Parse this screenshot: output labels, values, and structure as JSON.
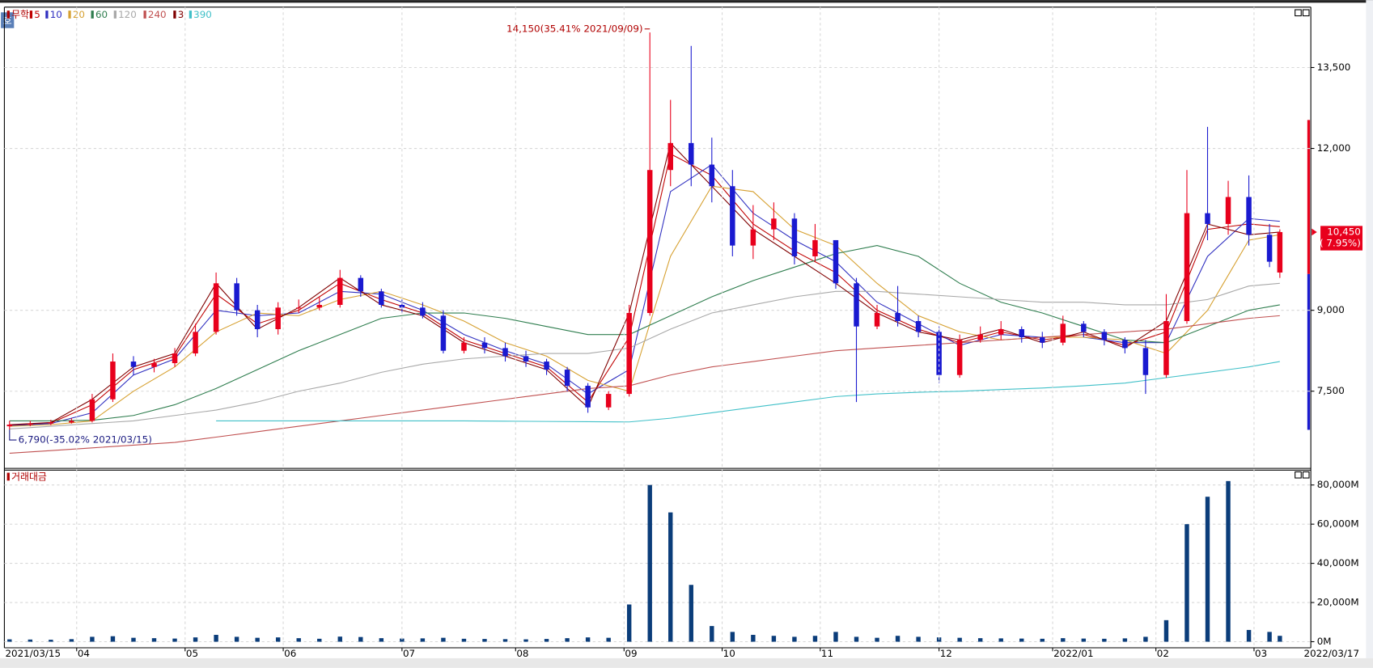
{
  "ui": {
    "button": "호"
  },
  "chart_data": [
    {
      "type": "candlestick",
      "title": "무학",
      "up_color": "#e8001c",
      "down_color": "#1a1ad0",
      "xlim": [
        -1,
        252
      ],
      "ylim": [
        6070,
        14620
      ],
      "yticks": [
        {
          "value": 7500,
          "label": "7,500"
        },
        {
          "value": 9000,
          "label": "9,000"
        },
        {
          "value": 12000,
          "label": "12,000"
        },
        {
          "value": 13500,
          "label": "13,500"
        }
      ],
      "grid": true,
      "x": [
        0,
        4,
        8,
        12,
        16,
        20,
        24,
        28,
        32,
        36,
        40,
        44,
        48,
        52,
        56,
        60,
        64,
        68,
        72,
        76,
        80,
        84,
        88,
        92,
        96,
        100,
        104,
        108,
        112,
        116,
        120,
        124,
        128,
        132,
        136,
        140,
        144,
        148,
        152,
        156,
        160,
        164,
        168,
        172,
        176,
        180,
        184,
        188,
        192,
        196,
        200,
        204,
        208,
        212,
        216,
        220,
        224,
        228,
        232,
        236,
        240,
        244,
        246
      ],
      "open": [
        6850,
        6880,
        6900,
        6920,
        6950,
        7350,
        8050,
        7950,
        8020,
        8200,
        8600,
        9500,
        9000,
        8650,
        9050,
        9050,
        9100,
        9600,
        9350,
        9100,
        9050,
        8900,
        8250,
        8400,
        8300,
        8150,
        8050,
        7900,
        7600,
        7200,
        7450,
        8950,
        11600,
        12100,
        11700,
        11300,
        10200,
        10500,
        10700,
        10000,
        10300,
        9500,
        8700,
        8950,
        8800,
        8600,
        7800,
        8450,
        8550,
        8650,
        8500,
        8400,
        8750,
        8600,
        8450,
        8300,
        7800,
        8800,
        10800,
        10600,
        11100,
        10400,
        9700
      ],
      "high": [
        6950,
        6950,
        6970,
        7000,
        7450,
        8200,
        8150,
        8100,
        8300,
        8750,
        9700,
        9600,
        9100,
        9150,
        9200,
        9250,
        9750,
        9650,
        9400,
        9200,
        9150,
        9000,
        8500,
        8500,
        8400,
        8250,
        8100,
        7950,
        7650,
        7500,
        9100,
        14150,
        12900,
        13900,
        12200,
        11600,
        10950,
        11000,
        10800,
        10600,
        10300,
        9600,
        9100,
        9450,
        8900,
        8700,
        8550,
        8700,
        8800,
        8700,
        8600,
        8900,
        8800,
        8650,
        8500,
        8450,
        9300,
        11600,
        12400,
        11400,
        11500,
        10600,
        10500
      ],
      "low": [
        6790,
        6850,
        6870,
        6900,
        6920,
        7300,
        7800,
        7850,
        7950,
        8150,
        8550,
        8900,
        8500,
        8550,
        8950,
        9000,
        9050,
        9250,
        9050,
        8950,
        8850,
        8200,
        8200,
        8200,
        8050,
        7950,
        7800,
        7500,
        7100,
        7150,
        7400,
        8900,
        11300,
        11300,
        11000,
        10000,
        9950,
        10300,
        9850,
        9900,
        9400,
        7300,
        8650,
        8700,
        8500,
        7650,
        7750,
        8400,
        8450,
        8400,
        8300,
        8350,
        8500,
        8350,
        8200,
        7450,
        7750,
        8750,
        10300,
        10400,
        10200,
        9800,
        9600
      ],
      "close": [
        6880,
        6900,
        6920,
        6950,
        7350,
        8050,
        7950,
        8020,
        8200,
        8600,
        9500,
        9000,
        8650,
        9050,
        9050,
        9100,
        9600,
        9350,
        9100,
        9050,
        8900,
        8250,
        8400,
        8300,
        8150,
        8050,
        7900,
        7600,
        7200,
        7450,
        8950,
        11600,
        12100,
        11700,
        11300,
        10200,
        10500,
        10700,
        10000,
        10300,
        9500,
        8700,
        8950,
        8800,
        8600,
        7800,
        8450,
        8550,
        8650,
        8500,
        8400,
        8750,
        8600,
        8450,
        8300,
        7800,
        8800,
        10800,
        10600,
        11100,
        10400,
        9900,
        10450
      ],
      "ma_x": [
        0,
        8,
        16,
        24,
        32,
        40,
        48,
        56,
        64,
        72,
        80,
        88,
        96,
        104,
        112,
        120,
        128,
        136,
        144,
        152,
        160,
        168,
        176,
        184,
        192,
        200,
        208,
        216,
        224,
        232,
        240,
        246
      ],
      "ma_series": [
        {
          "name": "5",
          "color": "#c00000",
          "values": [
            6870,
            6910,
            7250,
            7900,
            8150,
            9300,
            8750,
            9000,
            9500,
            9200,
            8950,
            8450,
            8200,
            7950,
            7300,
            8500,
            11900,
            11500,
            10600,
            10100,
            9700,
            9000,
            8650,
            8400,
            8600,
            8450,
            8550,
            8350,
            8600,
            10500,
            10600,
            10550
          ]
        },
        {
          "name": "10",
          "color": "#3030c0",
          "values": [
            6860,
            6900,
            7100,
            7800,
            8100,
            9000,
            8900,
            8950,
            9350,
            9300,
            9000,
            8550,
            8250,
            8000,
            7450,
            7900,
            11200,
            11700,
            10800,
            10300,
            9900,
            9150,
            8750,
            8350,
            8550,
            8500,
            8500,
            8400,
            8400,
            10000,
            10700,
            10650
          ]
        },
        {
          "name": "20",
          "color": "#d6a030",
          "values": [
            6850,
            6880,
            6950,
            7500,
            7950,
            8600,
            8950,
            8900,
            9200,
            9350,
            9100,
            8800,
            8400,
            8150,
            7700,
            7500,
            10000,
            11300,
            11200,
            10500,
            10200,
            9500,
            8900,
            8600,
            8450,
            8500,
            8500,
            8450,
            8200,
            9000,
            10300,
            10400
          ]
        },
        {
          "name": "60",
          "color": "#2e7d4e",
          "values": [
            6950,
            6950,
            6960,
            7050,
            7250,
            7550,
            7900,
            8250,
            8550,
            8850,
            8950,
            8950,
            8850,
            8700,
            8550,
            8550,
            8900,
            9250,
            9550,
            9800,
            10050,
            10200,
            10000,
            9500,
            9150,
            8950,
            8700,
            8450,
            8400,
            8700,
            9000,
            9100
          ]
        },
        {
          "name": "120",
          "color": "#a8a8a8",
          "values": [
            6800,
            6850,
            6900,
            6950,
            7050,
            7150,
            7300,
            7500,
            7650,
            7850,
            8000,
            8100,
            8150,
            8200,
            8200,
            8300,
            8650,
            8950,
            9100,
            9250,
            9350,
            9350,
            9300,
            9250,
            9200,
            9150,
            9150,
            9100,
            9100,
            9200,
            9450,
            9500
          ]
        },
        {
          "name": "240",
          "color": "#c05050",
          "values": [
            6350,
            6400,
            6450,
            6500,
            6550,
            6650,
            6750,
            6850,
            6950,
            7050,
            7150,
            7250,
            7350,
            7450,
            7550,
            7600,
            7800,
            7950,
            8050,
            8150,
            8250,
            8300,
            8350,
            8400,
            8450,
            8500,
            8550,
            8600,
            8650,
            8750,
            8850,
            8900
          ]
        },
        {
          "name": "3",
          "color": "#800000",
          "values": [
            6880,
            6920,
            7350,
            7950,
            8200,
            9500,
            8650,
            9050,
            9600,
            9100,
            8900,
            8400,
            8150,
            7900,
            7200,
            8950,
            12100,
            11300,
            10500,
            10000,
            9500,
            8950,
            8600,
            8450,
            8650,
            8400,
            8600,
            8300,
            8800,
            10600,
            10400,
            10450
          ]
        },
        {
          "name": "390",
          "color": "#40c0c8",
          "values": [
            null,
            null,
            null,
            null,
            null,
            6950,
            6950,
            6950,
            6950,
            6950,
            6950,
            6950,
            6945,
            6940,
            6935,
            6930,
            7000,
            7100,
            7200,
            7300,
            7400,
            7450,
            7480,
            7500,
            7530,
            7560,
            7600,
            7650,
            7750,
            7850,
            7950,
            8050
          ]
        }
      ],
      "high_annotation": "14,150(35.41% 2021/09/09)",
      "low_annotation": "6,790(-35.02% 2021/03/15)",
      "last_price_label": "10,450",
      "last_change_label": "( 7.95%)"
    },
    {
      "type": "bar",
      "title": "거래대금",
      "color": "#0b3d7a",
      "xlim": [
        -1,
        252
      ],
      "ylim": [
        -3100,
        87600
      ],
      "yticks": [
        {
          "value": 0,
          "label": "0M"
        },
        {
          "value": 20000,
          "label": "20,000M"
        },
        {
          "value": 40000,
          "label": "40,000M"
        },
        {
          "value": 60000,
          "label": "60,000M"
        },
        {
          "value": 80000,
          "label": "80,000M"
        }
      ],
      "grid": true,
      "xticks": [
        {
          "value": 13,
          "label": "04"
        },
        {
          "value": 34,
          "label": "05"
        },
        {
          "value": 53,
          "label": "06"
        },
        {
          "value": 76,
          "label": "07"
        },
        {
          "value": 98,
          "label": "08"
        },
        {
          "value": 119,
          "label": "09"
        },
        {
          "value": 138,
          "label": "10"
        },
        {
          "value": 157,
          "label": "11"
        },
        {
          "value": 180,
          "label": "12"
        },
        {
          "value": 202,
          "label": "2022/01"
        },
        {
          "value": 222,
          "label": "02"
        },
        {
          "value": 241,
          "label": "03"
        }
      ],
      "x_start_label": "2021/03/15",
      "x_end_label": "2022/03/17",
      "x": [
        0,
        4,
        8,
        12,
        16,
        20,
        24,
        28,
        32,
        36,
        40,
        44,
        48,
        52,
        56,
        60,
        64,
        68,
        72,
        76,
        80,
        84,
        88,
        92,
        96,
        100,
        104,
        108,
        112,
        116,
        120,
        124,
        128,
        132,
        136,
        140,
        144,
        148,
        152,
        156,
        160,
        164,
        168,
        172,
        176,
        180,
        184,
        188,
        192,
        196,
        200,
        204,
        208,
        212,
        216,
        220,
        224,
        228,
        232,
        236,
        240,
        244,
        246
      ],
      "values": [
        1200,
        1100,
        1000,
        1300,
        2500,
        2800,
        2000,
        1800,
        1600,
        2200,
        3500,
        2500,
        2000,
        2200,
        1800,
        1500,
        2600,
        2400,
        1800,
        1600,
        1700,
        2000,
        1500,
        1400,
        1300,
        1200,
        1400,
        1800,
        2200,
        2000,
        19000,
        80000,
        66000,
        29000,
        8000,
        5000,
        3500,
        3000,
        2500,
        3000,
        5000,
        2500,
        2000,
        3000,
        2500,
        2200,
        2000,
        1800,
        1700,
        1600,
        1500,
        1800,
        1600,
        1500,
        1700,
        2500,
        11000,
        60000,
        74000,
        82000,
        6000,
        5000,
        3000
      ]
    }
  ]
}
